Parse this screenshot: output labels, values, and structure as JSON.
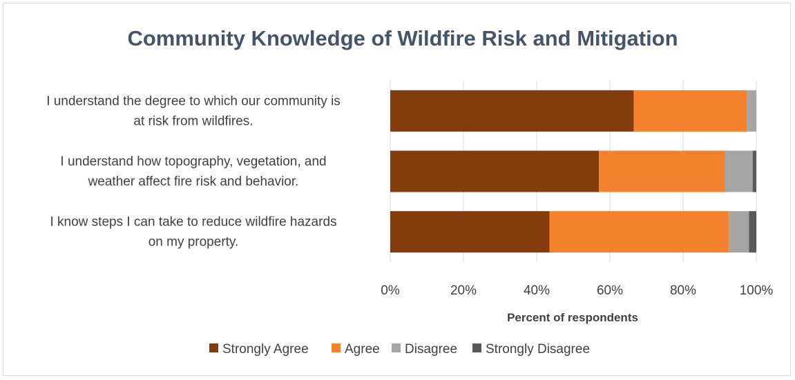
{
  "chart_data": {
    "type": "bar",
    "orientation": "horizontal",
    "stacked": true,
    "title": "Community Knowledge of Wildfire Risk and Mitigation",
    "xlabel": "Percent of respondents",
    "ylabel": "",
    "xlim": [
      0,
      100
    ],
    "x_ticks": [
      "0%",
      "20%",
      "40%",
      "60%",
      "80%",
      "100%"
    ],
    "categories": [
      [
        "I understand the degree to which our community is",
        "at risk from wildfires."
      ],
      [
        "I understand how topography, vegetation, and",
        "weather affect fire risk and behavior."
      ],
      [
        "I know steps I can take to reduce wildfire hazards",
        "on my property."
      ]
    ],
    "series": [
      {
        "name": "Strongly Agree",
        "color": "#843c0c",
        "values": [
          66.5,
          57,
          43.5
        ]
      },
      {
        "name": "Agree",
        "color": "#f4812d",
        "values": [
          31,
          34.5,
          49
        ]
      },
      {
        "name": "Disagree",
        "color": "#a5a5a5",
        "values": [
          2.5,
          7.5,
          5.5
        ]
      },
      {
        "name": "Strongly Disagree",
        "color": "#595959",
        "values": [
          0,
          1,
          2
        ]
      }
    ],
    "grid": true,
    "legend_position": "bottom"
  }
}
